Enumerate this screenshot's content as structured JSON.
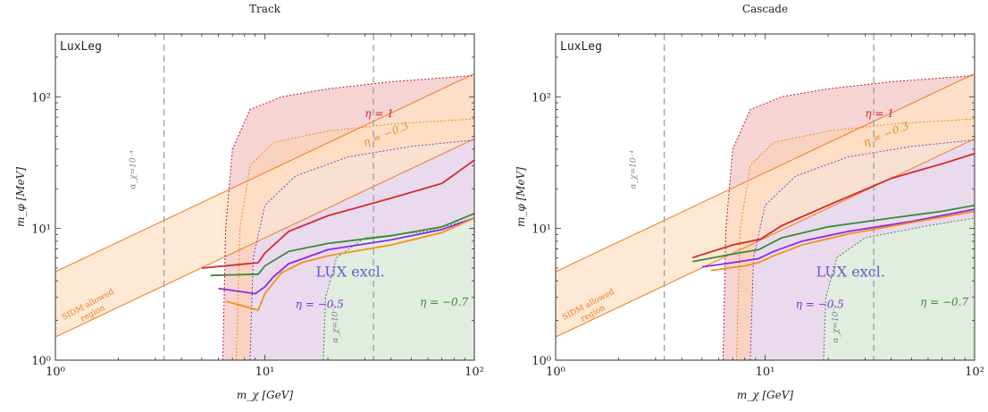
{
  "xlabel": "m_χ [GeV]",
  "ylabel": "m_φ [MeV]",
  "x_ticks": [
    "10⁰",
    "10¹",
    "10²"
  ],
  "y_ticks": [
    "10⁰",
    "10¹",
    "10²"
  ],
  "corner_label": "LuxLeg",
  "sidm_label_line1": "SIDM allowed",
  "sidm_label_line2": "region",
  "lux_label": "LUX excl.",
  "alpha_label_1": "α_χ=10⁻⁴",
  "alpha_label_2": "α_χ=10⁻³",
  "eta_labels": [
    "η = 1",
    "η = −0.3",
    "η = −0.5",
    "η = −0.7"
  ],
  "colors": {
    "eta1_fill": "#f5cccc",
    "eta1_edge": "#c0202a",
    "eta1_line": "#d42a2a",
    "eta03_fill": "#fbd2b0",
    "eta03_edge": "#f08a22",
    "eta05_fill": "#e8daf5",
    "eta05_edge": "#8840c8",
    "eta05_line": "#8a2be2",
    "eta07_fill": "#dfeedd",
    "eta07_edge": "#4a8a4a",
    "eta07_line": "#3a8a3a",
    "sidm_fill": "#fde1c6",
    "sidm_edge": "#f07a20",
    "orange_line": "#f5901e",
    "vline": "#9aa4b4",
    "lux_text": "#6a5acd"
  },
  "chart_data": [
    {
      "type": "line",
      "title": "Track",
      "x_scale": "log",
      "y_scale": "log",
      "xlim": [
        1,
        100
      ],
      "ylim": [
        1,
        300
      ],
      "vertical_lines": [
        3.3,
        33
      ],
      "sidm_band": {
        "lower": [
          [
            1,
            1.5
          ],
          [
            100,
            48
          ]
        ],
        "upper": [
          [
            1,
            4.7
          ],
          [
            100,
            150
          ]
        ]
      },
      "regions": [
        {
          "name": "η = 1",
          "boundary": [
            [
              6.3,
              1
            ],
            [
              6.5,
              10
            ],
            [
              7.0,
              40
            ],
            [
              8.5,
              80
            ],
            [
              12,
              100
            ],
            [
              20,
              115
            ],
            [
              40,
              130
            ],
            [
              100,
              145
            ]
          ]
        },
        {
          "name": "η = −0.3",
          "boundary": [
            [
              7.3,
              1
            ],
            [
              7.6,
              10
            ],
            [
              8.5,
              30
            ],
            [
              11,
              45
            ],
            [
              20,
              55
            ],
            [
              40,
              62
            ],
            [
              100,
              68
            ]
          ]
        },
        {
          "name": "η = −0.5",
          "boundary": [
            [
              8.5,
              1
            ],
            [
              8.8,
              6
            ],
            [
              10,
              15
            ],
            [
              14,
              25
            ],
            [
              25,
              35
            ],
            [
              50,
              42
            ],
            [
              100,
              47
            ]
          ]
        },
        {
          "name": "η = −0.7",
          "boundary": [
            [
              19,
              1
            ],
            [
              19.5,
              3
            ],
            [
              22,
              6
            ],
            [
              30,
              8.5
            ],
            [
              60,
              9.5
            ],
            [
              100,
              12
            ]
          ]
        }
      ],
      "series": [
        {
          "name": "η = 1",
          "color": "#d42a2a",
          "points": [
            [
              5,
              5.0
            ],
            [
              9.3,
              5.5
            ],
            [
              10,
              6.5
            ],
            [
              13,
              9.5
            ],
            [
              20,
              12.5
            ],
            [
              40,
              17
            ],
            [
              70,
              22
            ],
            [
              100,
              33
            ]
          ]
        },
        {
          "name": "η = −0.7",
          "color": "#3a8a3a",
          "points": [
            [
              5.5,
              4.4
            ],
            [
              9.3,
              4.5
            ],
            [
              10,
              5.2
            ],
            [
              13,
              6.7
            ],
            [
              20,
              7.7
            ],
            [
              40,
              8.8
            ],
            [
              70,
              10.3
            ],
            [
              100,
              13
            ]
          ]
        },
        {
          "name": "η = −0.5",
          "color": "#8a2be2",
          "points": [
            [
              6,
              3.5
            ],
            [
              9,
              3.2
            ],
            [
              10,
              3.6
            ],
            [
              11,
              4.3
            ],
            [
              13,
              5.4
            ],
            [
              20,
              6.9
            ],
            [
              40,
              8.2
            ],
            [
              70,
              9.8
            ],
            [
              100,
              12
            ]
          ]
        },
        {
          "name": "η = −0.3",
          "color": "#f5901e",
          "points": [
            [
              6.5,
              2.8
            ],
            [
              9.3,
              2.4
            ],
            [
              10,
              3.2
            ],
            [
              12,
              4.6
            ],
            [
              15,
              5.5
            ],
            [
              20,
              6.2
            ],
            [
              40,
              7.5
            ],
            [
              70,
              9.3
            ],
            [
              100,
              12
            ]
          ]
        }
      ]
    },
    {
      "type": "line",
      "title": "Cascade",
      "x_scale": "log",
      "y_scale": "log",
      "xlim": [
        1,
        100
      ],
      "ylim": [
        1,
        300
      ],
      "vertical_lines": [
        3.3,
        33
      ],
      "sidm_band": {
        "lower": [
          [
            1,
            1.5
          ],
          [
            100,
            48
          ]
        ],
        "upper": [
          [
            1,
            4.7
          ],
          [
            100,
            150
          ]
        ]
      },
      "regions": [
        {
          "name": "η = 1",
          "boundary": [
            [
              6.3,
              1
            ],
            [
              6.5,
              10
            ],
            [
              7.0,
              40
            ],
            [
              8.5,
              80
            ],
            [
              12,
              100
            ],
            [
              20,
              115
            ],
            [
              40,
              130
            ],
            [
              100,
              145
            ]
          ]
        },
        {
          "name": "η = −0.3",
          "boundary": [
            [
              7.3,
              1
            ],
            [
              7.6,
              10
            ],
            [
              8.5,
              30
            ],
            [
              11,
              45
            ],
            [
              20,
              55
            ],
            [
              40,
              62
            ],
            [
              100,
              68
            ]
          ]
        },
        {
          "name": "η = −0.5",
          "boundary": [
            [
              8.5,
              1
            ],
            [
              8.8,
              6
            ],
            [
              10,
              15
            ],
            [
              14,
              25
            ],
            [
              25,
              35
            ],
            [
              50,
              42
            ],
            [
              100,
              47
            ]
          ]
        },
        {
          "name": "η = −0.7",
          "boundary": [
            [
              19,
              1
            ],
            [
              19.5,
              3
            ],
            [
              22,
              6
            ],
            [
              30,
              8.5
            ],
            [
              60,
              10.5
            ],
            [
              100,
              12
            ]
          ]
        }
      ],
      "series": [
        {
          "name": "η = 1",
          "color": "#d42a2a",
          "points": [
            [
              4.5,
              6.0
            ],
            [
              7,
              7.5
            ],
            [
              9.5,
              8.3
            ],
            [
              12,
              10.5
            ],
            [
              20,
              15
            ],
            [
              40,
              24
            ],
            [
              70,
              31
            ],
            [
              100,
              37
            ]
          ]
        },
        {
          "name": "η = −0.7",
          "color": "#3a8a3a",
          "points": [
            [
              4.5,
              5.6
            ],
            [
              7,
              6.4
            ],
            [
              9.3,
              6.9
            ],
            [
              12,
              8.5
            ],
            [
              20,
              10.3
            ],
            [
              40,
              12
            ],
            [
              70,
              13.5
            ],
            [
              100,
              15
            ]
          ]
        },
        {
          "name": "η = −0.5",
          "color": "#8a2be2",
          "points": [
            [
              5,
              5.1
            ],
            [
              7,
              5.5
            ],
            [
              9.3,
              5.9
            ],
            [
              11,
              6.7
            ],
            [
              15,
              8
            ],
            [
              25,
              9.5
            ],
            [
              50,
              11.3
            ],
            [
              100,
              14
            ]
          ]
        },
        {
          "name": "η = −0.3",
          "color": "#f5901e",
          "points": [
            [
              5.5,
              4.8
            ],
            [
              8,
              5.2
            ],
            [
              9.3,
              5.5
            ],
            [
              11,
              6.2
            ],
            [
              15,
              7.5
            ],
            [
              25,
              9.1
            ],
            [
              50,
              11.1
            ],
            [
              100,
              13.5
            ]
          ]
        }
      ]
    }
  ]
}
